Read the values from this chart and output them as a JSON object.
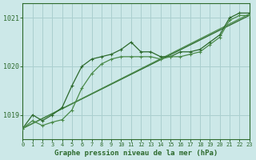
{
  "title": "Graphe pression niveau de la mer (hPa)",
  "bg_color": "#cce8e8",
  "grid_color": "#aacfcf",
  "line_color": "#2d6a2d",
  "line_color2": "#4a8a4a",
  "x_min": 0,
  "x_max": 23,
  "y_min": 1018.5,
  "y_max": 1021.3,
  "series1": {
    "x": [
      0,
      1,
      2,
      3,
      4,
      5,
      6,
      7,
      8,
      9,
      10,
      11,
      12,
      13,
      14,
      15,
      16,
      17,
      18,
      19,
      20,
      21,
      22,
      23
    ],
    "y": [
      1018.72,
      1019.0,
      1018.88,
      1019.0,
      1019.15,
      1019.6,
      1020.0,
      1020.15,
      1020.2,
      1020.25,
      1020.35,
      1020.5,
      1020.3,
      1020.3,
      1020.2,
      1020.2,
      1020.3,
      1020.3,
      1020.35,
      1020.5,
      1020.65,
      1021.0,
      1021.1,
      1021.1
    ]
  },
  "series2": {
    "x": [
      0,
      23
    ],
    "y": [
      1018.72,
      1021.05
    ]
  },
  "series3": {
    "x": [
      0,
      23
    ],
    "y": [
      1018.72,
      1021.08
    ]
  },
  "series4": {
    "x": [
      0,
      1,
      2,
      3,
      4,
      5,
      6,
      7,
      8,
      9,
      10,
      11,
      12,
      13,
      14,
      15,
      16,
      17,
      18,
      19,
      20,
      21,
      22,
      23
    ],
    "y": [
      1018.72,
      1018.88,
      1018.78,
      1018.85,
      1018.9,
      1019.1,
      1019.55,
      1019.85,
      1020.05,
      1020.15,
      1020.2,
      1020.2,
      1020.2,
      1020.2,
      1020.15,
      1020.2,
      1020.2,
      1020.25,
      1020.3,
      1020.45,
      1020.6,
      1020.95,
      1021.05,
      1021.05
    ]
  },
  "yticks": [
    1019,
    1020,
    1021
  ],
  "xticks": [
    0,
    1,
    2,
    3,
    4,
    5,
    6,
    7,
    8,
    9,
    10,
    11,
    12,
    13,
    14,
    15,
    16,
    17,
    18,
    19,
    20,
    21,
    22,
    23
  ]
}
